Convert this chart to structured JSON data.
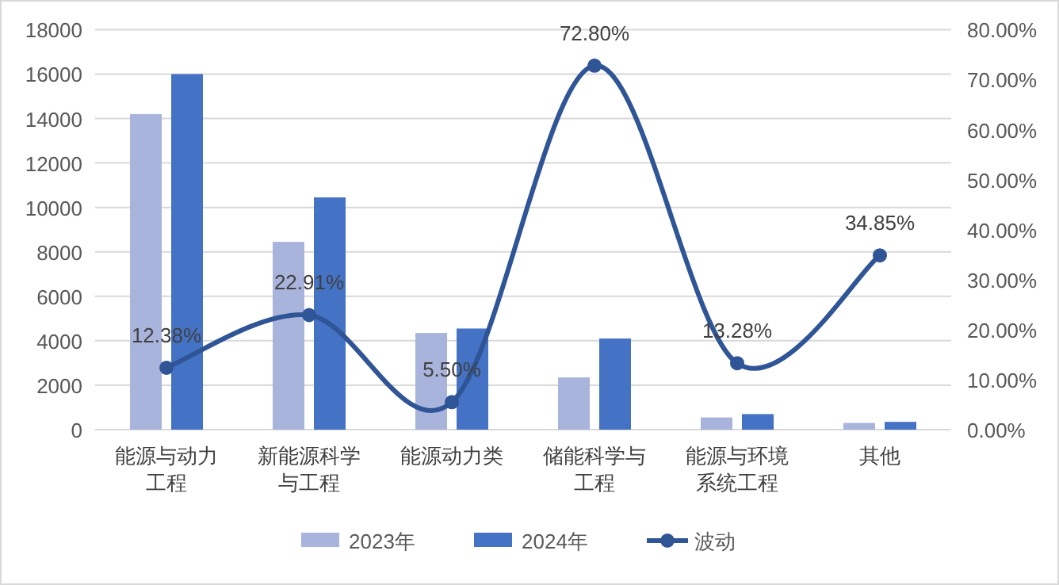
{
  "chart_data": {
    "type": "bar",
    "categories": [
      "能源与动力工程",
      "新能源科学与工程",
      "能源动力类",
      "储能科学与工程",
      "能源与环境系统工程",
      "其他"
    ],
    "series": [
      {
        "name": "2023年",
        "color": "#a9b4dc",
        "values": [
          14200,
          8450,
          4350,
          2350,
          550,
          300
        ]
      },
      {
        "name": "2024年",
        "color": "#4472c4",
        "values": [
          16000,
          10450,
          4550,
          4100,
          700,
          350
        ]
      },
      {
        "name": "波动",
        "type": "line",
        "axis": "y2",
        "color": "#2f5597",
        "values": [
          12.38,
          22.91,
          5.5,
          72.8,
          13.28,
          34.85
        ],
        "value_labels": [
          "12.38%",
          "22.91%",
          "5.50%",
          "72.80%",
          "13.28%",
          "34.85%"
        ]
      }
    ],
    "ylim": [
      0,
      18000
    ],
    "yticks": [
      0,
      2000,
      4000,
      6000,
      8000,
      10000,
      12000,
      14000,
      16000,
      18000
    ],
    "y2lim": [
      0,
      80
    ],
    "y2ticks": [
      {
        "value": 0,
        "label": "0.00%"
      },
      {
        "value": 10,
        "label": "10.00%"
      },
      {
        "value": 20,
        "label": "20.00%"
      },
      {
        "value": 30,
        "label": "30.00%"
      },
      {
        "value": 40,
        "label": "40.00%"
      },
      {
        "value": 50,
        "label": "50.00%"
      },
      {
        "value": 60,
        "label": "60.00%"
      },
      {
        "value": 70,
        "label": "70.00%"
      },
      {
        "value": 80,
        "label": "80.00%"
      }
    ],
    "grid": "y",
    "legend": "bottom",
    "marker": "circle",
    "line_style": "solid"
  }
}
